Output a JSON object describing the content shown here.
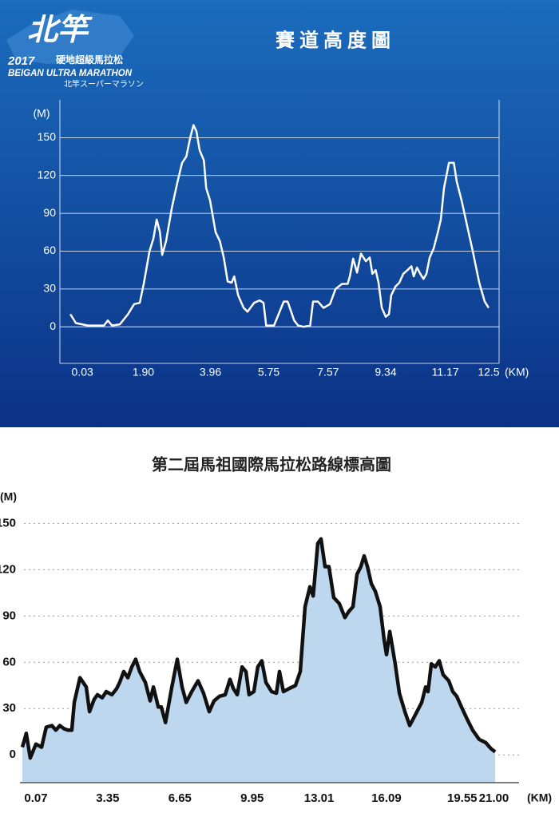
{
  "logo": {
    "mark": "北竿",
    "year": "2017",
    "name_zh": "硬地超級馬拉松",
    "name_en": "BEIGAN ULTRA MARATHON",
    "name_jp": "北竿スーパーマラソン"
  },
  "chart_data": [
    {
      "type": "line",
      "title": "賽道高度圖",
      "ylabel": "(M)",
      "xlabel": "(KM)",
      "color": "#ffffff",
      "grid": true,
      "xlim": [
        -0.66,
        12.82
      ],
      "ylim": [
        -29,
        180
      ],
      "xticks": [
        0.03,
        {
          "value": 1.9,
          "label": "1.90"
        },
        3.96,
        5.75,
        7.57,
        9.34,
        11.17,
        12.5
      ],
      "yticks": [
        0,
        30,
        60,
        90,
        120,
        150
      ],
      "x": [
        -0.34,
        -0.17,
        0.2,
        0.69,
        0.81,
        0.94,
        1.18,
        1.43,
        1.62,
        1.79,
        1.92,
        2.09,
        2.21,
        2.31,
        2.41,
        2.48,
        2.6,
        2.78,
        2.95,
        3.09,
        3.22,
        3.34,
        3.44,
        3.53,
        3.63,
        3.76,
        3.83,
        3.95,
        4.12,
        4.25,
        4.37,
        4.49,
        4.61,
        4.69,
        4.81,
        4.98,
        5.1,
        5.3,
        5.47,
        5.59,
        5.67,
        5.91,
        6.21,
        6.33,
        6.53,
        6.65,
        6.82,
        7.02,
        7.11,
        7.26,
        7.43,
        7.63,
        7.8,
        8.0,
        8.17,
        8.24,
        8.34,
        8.46,
        8.58,
        8.73,
        8.85,
        8.93,
        9.03,
        9.12,
        9.22,
        9.34,
        9.44,
        9.51,
        9.64,
        9.76,
        9.88,
        10.01,
        10.13,
        10.2,
        10.3,
        10.4,
        10.5,
        10.59,
        10.69,
        10.81,
        10.94,
        11.03,
        11.13,
        11.28,
        11.43,
        11.52,
        11.67,
        11.84,
        12.01,
        12.21,
        12.38,
        12.5
      ],
      "values": [
        10,
        3,
        1,
        1,
        5,
        1,
        2,
        10,
        18,
        19,
        35,
        60,
        70,
        85,
        75,
        57,
        68,
        95,
        115,
        130,
        135,
        150,
        160,
        155,
        140,
        132,
        110,
        100,
        75,
        68,
        55,
        36,
        35,
        40,
        25,
        15,
        12,
        19,
        21,
        19,
        1,
        1,
        20,
        20,
        5,
        1,
        0,
        1,
        20,
        20,
        15,
        18,
        30,
        34,
        34,
        40,
        54,
        43,
        58,
        52,
        55,
        42,
        45,
        35,
        15,
        8,
        10,
        25,
        32,
        35,
        42,
        45,
        48,
        40,
        47,
        42,
        38,
        42,
        55,
        62,
        75,
        85,
        110,
        130,
        130,
        115,
        100,
        80,
        60,
        35,
        20,
        15
      ]
    },
    {
      "type": "area",
      "title": "第二屆馬祖國際馬拉松路線標高圖",
      "ylabel": "(M)",
      "xlabel": "(KM)",
      "color": "#111111",
      "fill": "#bdd7ee",
      "grid": true,
      "xlim": [
        -0.66,
        22.15
      ],
      "ylim": [
        -18,
        158
      ],
      "xticks": [
        0.07,
        3.35,
        6.65,
        9.95,
        13.01,
        16.09,
        19.55,
        {
          "value": 21,
          "label": "21.00"
        }
      ],
      "yticks": [
        0,
        30,
        60,
        90,
        120,
        150
      ],
      "x": [
        -0.55,
        -0.37,
        -0.19,
        0.07,
        0.33,
        0.54,
        0.8,
        0.98,
        1.16,
        1.35,
        1.53,
        1.71,
        1.82,
        2.08,
        2.37,
        2.52,
        2.73,
        2.88,
        3.1,
        3.28,
        3.54,
        3.76,
        3.9,
        4.08,
        4.27,
        4.45,
        4.63,
        4.81,
        5.07,
        5.29,
        5.44,
        5.66,
        5.8,
        5.99,
        6.28,
        6.53,
        6.75,
        6.94,
        7.19,
        7.48,
        7.73,
        7.99,
        8.21,
        8.46,
        8.72,
        8.94,
        9.09,
        9.27,
        9.49,
        9.67,
        9.81,
        10.03,
        10.21,
        10.39,
        10.58,
        10.84,
        11.06,
        11.2,
        11.38,
        11.64,
        11.93,
        12.15,
        12.37,
        12.59,
        12.74,
        12.84,
        12.95,
        13.1,
        13.28,
        13.46,
        13.68,
        13.94,
        14.19,
        14.37,
        14.56,
        14.74,
        14.92,
        15.07,
        15.22,
        15.4,
        15.58,
        15.8,
        15.98,
        16.09,
        16.24,
        16.49,
        16.68,
        16.93,
        17.15,
        17.41,
        17.7,
        17.88,
        17.99,
        18.14,
        18.32,
        18.5,
        18.68,
        18.94,
        19.12,
        19.3,
        19.52,
        19.78,
        20.03,
        20.33,
        20.62,
        20.87,
        21.06
      ],
      "values": [
        5,
        14,
        -2,
        7,
        5,
        18,
        19,
        16,
        19,
        17,
        16,
        16,
        34,
        50,
        44,
        28,
        36,
        39,
        37,
        41,
        39,
        43,
        47,
        54,
        50,
        57,
        62,
        54,
        47,
        35,
        44,
        31,
        31,
        21,
        44,
        62,
        44,
        34,
        41,
        48,
        40,
        28,
        35,
        38,
        39,
        49,
        43,
        39,
        57,
        54,
        39,
        41,
        57,
        61,
        47,
        41,
        40,
        54,
        41,
        43,
        45,
        54,
        96,
        109,
        103,
        119,
        137,
        140,
        122,
        122,
        102,
        98,
        89,
        93,
        96,
        117,
        122,
        129,
        122,
        111,
        106,
        96,
        75,
        65,
        80,
        59,
        40,
        28,
        19,
        26,
        34,
        44,
        41,
        59,
        57,
        61,
        52,
        48,
        41,
        38,
        31,
        23,
        16,
        10,
        8,
        4,
        2
      ]
    }
  ]
}
